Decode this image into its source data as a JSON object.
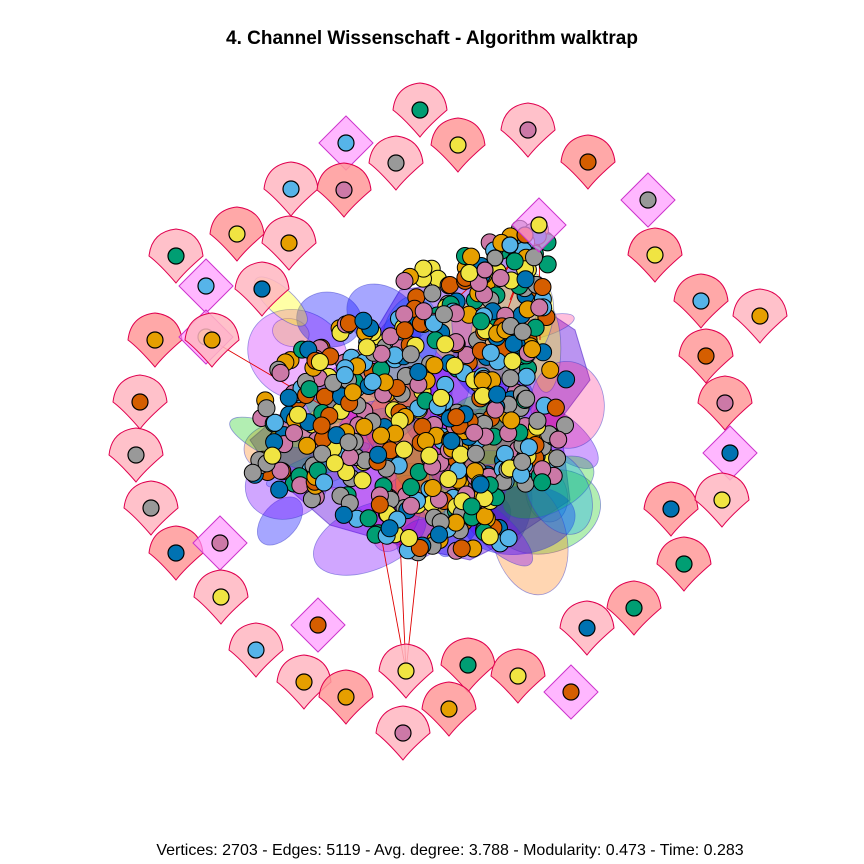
{
  "title": "4. Channel Wissenschaft - Algorithm walktrap",
  "stats": "Vertices: 2703 - Edges: 5119 - Avg. degree: 3.788 - Modularity: 0.473 - Time: 0.283",
  "colors": {
    "node_palette": [
      "#E69F00",
      "#56B4E9",
      "#009E73",
      "#F0E442",
      "#0072B2",
      "#D55E00",
      "#CC79A7",
      "#999999"
    ],
    "hull_pink": "#FFB6C1",
    "hull_magenta": "#FF99FF",
    "hull_rose": "#FF9999",
    "hull_stroke": "#E0004F",
    "edge": "#E00000"
  }
}
